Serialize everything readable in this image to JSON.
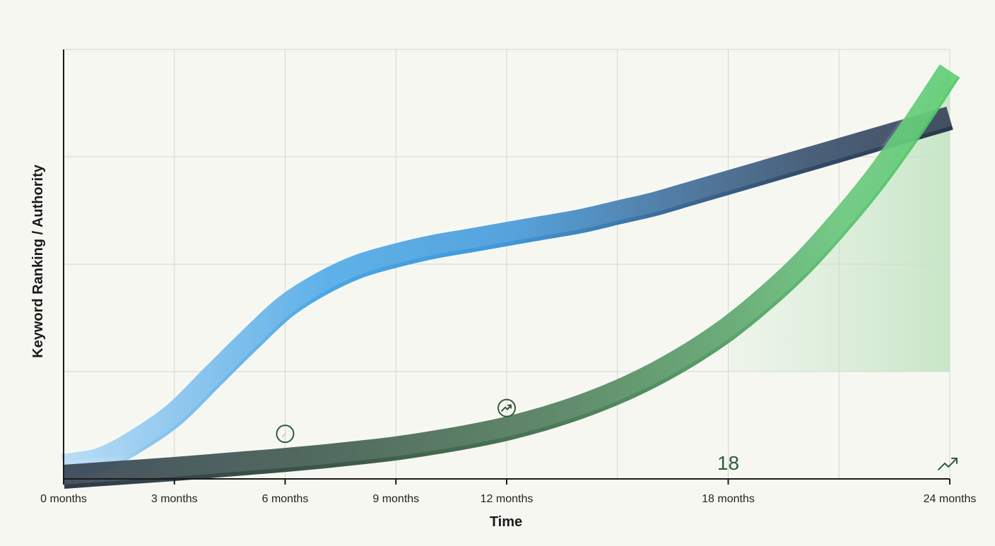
{
  "chart_data": {
    "type": "line",
    "title": "",
    "xlabel": "Time",
    "ylabel": "Keyword Ranking / Authority",
    "x_ticks": [
      {
        "value": 0,
        "label": "0 months"
      },
      {
        "value": 3,
        "label": "3 months"
      },
      {
        "value": 6,
        "label": "6 months"
      },
      {
        "value": 9,
        "label": "9 months"
      },
      {
        "value": 12,
        "label": "12 months"
      },
      {
        "value": 18,
        "label": "18 months"
      },
      {
        "value": 24,
        "label": "24 months"
      }
    ],
    "xlim": [
      0,
      24
    ],
    "ylim": [
      0,
      100
    ],
    "grid": true,
    "series": [
      {
        "color_light": "#9fd0f2",
        "color_mid": "#3aa0e4",
        "color_dark": "#1b2a40",
        "x": [
          0,
          1,
          2,
          3,
          4,
          5,
          6,
          7,
          8,
          9,
          10,
          11,
          12,
          13,
          14,
          15,
          16,
          17,
          18,
          19,
          20,
          21,
          22,
          23,
          24
        ],
        "y": [
          3,
          4.5,
          9,
          15,
          23.5,
          32,
          40,
          45.5,
          49.5,
          52,
          54,
          55.5,
          57,
          58.5,
          60,
          62,
          64,
          66.5,
          69,
          71.5,
          74,
          76.5,
          79,
          81.5,
          84
        ]
      },
      {
        "color_light": "#6fd27f",
        "color_mid": "#3fae52",
        "color_dark": "#1e2a3c",
        "x": [
          0,
          1,
          2,
          3,
          4,
          5,
          6,
          7,
          8,
          9,
          10,
          11,
          12,
          13,
          14,
          15,
          16,
          17,
          18,
          19,
          20,
          21,
          22,
          23,
          24
        ],
        "y": [
          0.5,
          1.1,
          1.7,
          2.3,
          3,
          3.7,
          4.4,
          5.2,
          6.1,
          7.1,
          8.4,
          9.9,
          11.7,
          14,
          16.8,
          20.2,
          24.3,
          29.2,
          35,
          42,
          50,
          59.5,
          70,
          82,
          95
        ]
      }
    ],
    "annotations": [
      {
        "type": "icon",
        "icon": "compass-icon",
        "x": 6,
        "y": 10.5
      },
      {
        "type": "icon",
        "icon": "growth-circle-icon",
        "x": 12,
        "y": 16.5
      },
      {
        "type": "text",
        "text": "18",
        "x": 18,
        "y": 3.8
      },
      {
        "type": "icon",
        "icon": "trend-up-icon",
        "x": 24,
        "y": 3.8
      }
    ]
  }
}
